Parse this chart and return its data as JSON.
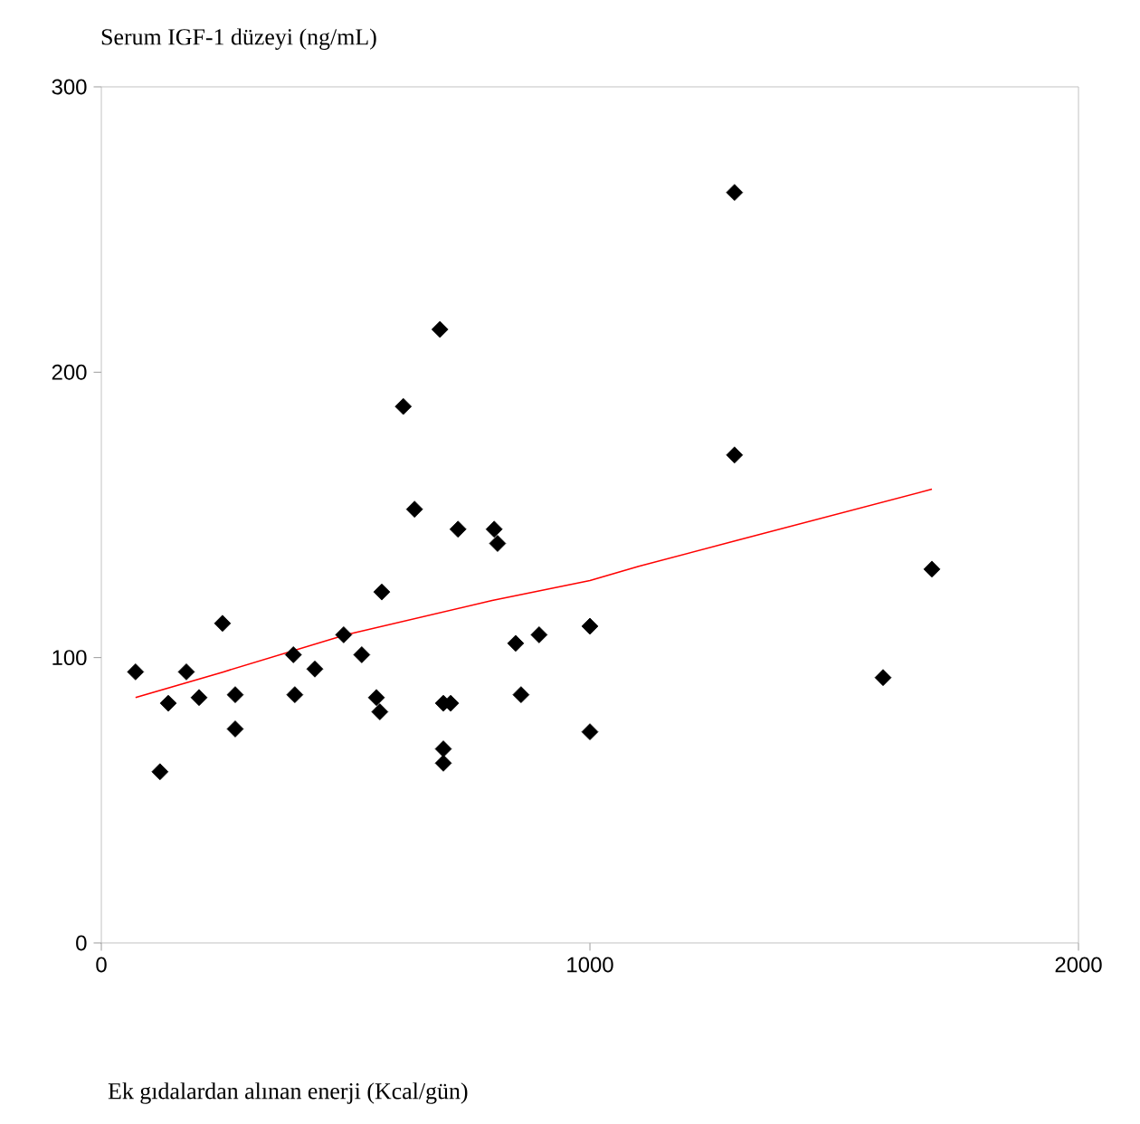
{
  "chart_data": {
    "type": "scatter",
    "ylabel": "Serum IGF-1 düzeyi (ng/mL)",
    "xlabel": "Ek gıdalardan alınan enerji (Kcal/gün)",
    "xlim": [
      0,
      2000
    ],
    "ylim": [
      0,
      300
    ],
    "xticks": [
      0,
      1000,
      2000
    ],
    "yticks": [
      0,
      100,
      200,
      300
    ],
    "marker": "diamond",
    "series": [
      {
        "color": "#000000",
        "x": [
          70,
          120,
          137,
          174,
          200,
          248,
          274,
          274,
          393,
          396,
          437,
          496,
          533,
          563,
          570,
          574,
          618,
          641,
          693,
          700,
          715,
          700,
          700,
          730,
          804,
          811,
          848,
          859,
          896,
          1000,
          1000,
          1296,
          1296,
          1600,
          1700
        ],
        "values": [
          95,
          60,
          84,
          95,
          86,
          112,
          87,
          75,
          101,
          87,
          96,
          108,
          101,
          86,
          81,
          123,
          188,
          152,
          215,
          84,
          84,
          68,
          63,
          145,
          145,
          140,
          105,
          87,
          108,
          111,
          74,
          263,
          171,
          93,
          131
        ]
      },
      {
        "type": "line",
        "color": "#ff0000",
        "marker": "none",
        "x": [
          70,
          250,
          500,
          800,
          1000,
          1100,
          1300,
          1500,
          1700
        ],
        "values": [
          86,
          95,
          108,
          120,
          127,
          132,
          141,
          150,
          159
        ]
      }
    ]
  }
}
